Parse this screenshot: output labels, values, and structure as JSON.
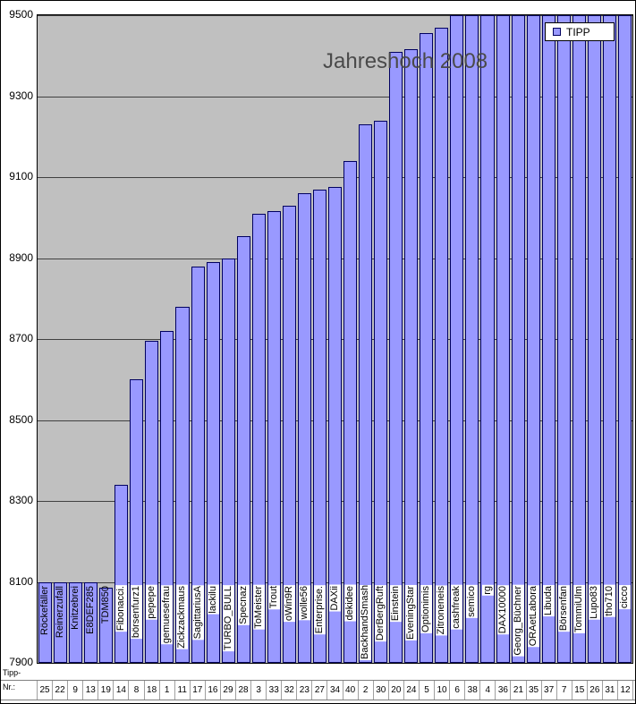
{
  "chart": {
    "title": "Jahreshoch 2008",
    "legend_label": "TIPP",
    "x_header_line1": "Tipp-",
    "x_header_line2": "Nr.:"
  },
  "colors": {
    "bar_fill": "#9999FF",
    "bar_border": "#000060",
    "plot_background": "#C0C0C0",
    "gridline": "#404040",
    "title_text": "#4a4a4a"
  },
  "chart_data": {
    "type": "bar",
    "title": "Jahreshoch 2008",
    "series_name": "TIPP",
    "ylim": [
      7900,
      9500
    ],
    "y_tick_step": 200,
    "y_ticks": [
      7900,
      8100,
      8300,
      8500,
      8700,
      8900,
      9100,
      9300,
      9500
    ],
    "grid": true,
    "legend_position": "top-right",
    "categories": [
      "Röckefäller",
      "Reinerzufall",
      "Knitzebrei",
      "E8DEF285",
      "TDM850",
      "Fibonacci.",
      "börsenfurz1",
      "pepepe",
      "gemuesefrau",
      "Zickzackmaus",
      "SagittariusA",
      "lackilu",
      "TURBO_BULL",
      "Specnaz",
      "ToMeister",
      "Trout",
      "oWin9R",
      "wolle56",
      "Enterprise.",
      "DAXii",
      "dekidee",
      "BackhandSmash",
      "DerBergRuft",
      "Einstein",
      "EveningStar",
      "Optionimis",
      "Zitroneneis",
      "cashfreak",
      "semico",
      "rg",
      "DAX10000",
      "Georg_Büchner",
      "ORAetLabora",
      "Libuda",
      "Börsenfan",
      "TommiUlm",
      "Lupo83",
      "tho710",
      "cicco"
    ],
    "tipp_nr": [
      25,
      22,
      9,
      13,
      19,
      14,
      8,
      18,
      1,
      11,
      17,
      16,
      29,
      28,
      3,
      33,
      32,
      23,
      27,
      34,
      40,
      2,
      30,
      20,
      24,
      5,
      10,
      6,
      38,
      4,
      36,
      21,
      35,
      37,
      7,
      15,
      26,
      31,
      12
    ],
    "values": [
      8100,
      8100,
      8100,
      8100,
      8085,
      8340,
      8600,
      8695,
      8720,
      8780,
      8880,
      8890,
      8900,
      8955,
      9010,
      9015,
      9030,
      9060,
      9070,
      9075,
      9140,
      9230,
      9240,
      9410,
      9415,
      9455,
      9470,
      9500,
      9500,
      9500,
      9500,
      9500,
      9500,
      9500,
      9500,
      9500,
      9500,
      9500,
      9500
    ]
  }
}
